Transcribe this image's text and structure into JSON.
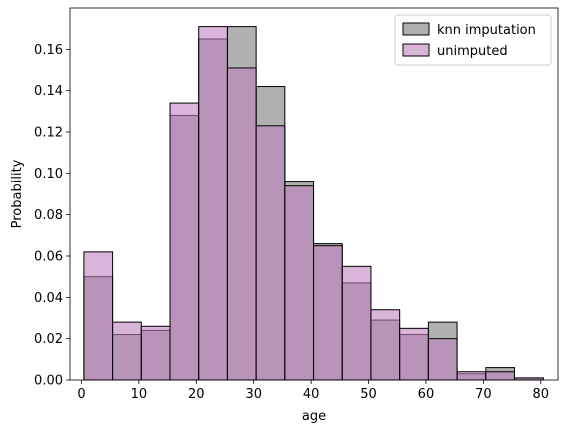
{
  "chart_data": {
    "type": "bar",
    "subtype": "overlaid histogram",
    "xlabel": "age",
    "ylabel": "Probability",
    "xlim": [
      -2,
      83
    ],
    "ylim": [
      0,
      0.18
    ],
    "xticks": [
      0,
      10,
      20,
      30,
      40,
      50,
      60,
      70,
      80
    ],
    "yticks": [
      0.0,
      0.02,
      0.04,
      0.06,
      0.08,
      0.1,
      0.12,
      0.14,
      0.16
    ],
    "ytick_labels": [
      "0.00",
      "0.02",
      "0.04",
      "0.06",
      "0.08",
      "0.10",
      "0.12",
      "0.14",
      "0.16"
    ],
    "grid": false,
    "legend_placement": "top-right",
    "bin_edges": [
      0.42,
      5.42,
      10.42,
      15.42,
      20.42,
      25.42,
      30.42,
      35.42,
      40.42,
      45.42,
      50.42,
      55.42,
      60.42,
      65.42,
      70.42,
      75.42,
      80.42
    ],
    "series": [
      {
        "name": "knn imputation",
        "color": "#808080",
        "values": [
          0.05,
          0.022,
          0.024,
          0.128,
          0.165,
          0.171,
          0.142,
          0.096,
          0.066,
          0.047,
          0.029,
          0.022,
          0.028,
          0.003,
          0.006,
          0.001
        ]
      },
      {
        "name": "unimputed",
        "color": "#c080c0",
        "values": [
          0.062,
          0.028,
          0.026,
          0.134,
          0.171,
          0.151,
          0.123,
          0.094,
          0.065,
          0.055,
          0.034,
          0.025,
          0.02,
          0.004,
          0.004,
          0.001
        ]
      }
    ]
  }
}
